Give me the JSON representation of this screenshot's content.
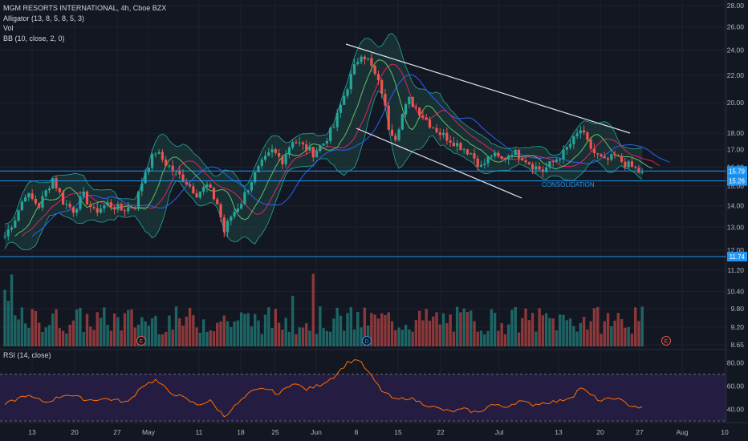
{
  "legend": {
    "title": "MGM RESORTS INTERNATIONAL, 4h, Cboe BZX",
    "alligator": "Alligator (13, 8, 5, 8, 5, 3)",
    "vol": "Vol",
    "bb": "BB (10, close, 2, 0)"
  },
  "rsi_label": "RSI (14, close)",
  "annotation": "CONSOLIDATION",
  "event_markers": [
    "E",
    "D",
    "E"
  ],
  "colors": {
    "background": "#131722",
    "up": "#26a69a",
    "down": "#ef5350",
    "hline": "#2196f3",
    "bb_band": "#26a69a",
    "bb_fill": "#1f4f4a",
    "jaw": "#2962ff",
    "teeth": "#e91e63",
    "lips": "#66bb6a",
    "rsi_line": "#ff6d00",
    "rsi_fill": "#2a1f4a",
    "channel": "#e0e3eb"
  },
  "chart_data": {
    "type": "candlestick",
    "price_axis": {
      "ticks": [
        "28.00",
        "26.00",
        "24.00",
        "22.00",
        "20.00",
        "18.00",
        "17.00",
        "16.00",
        "15.00",
        "14.00",
        "13.00",
        "12.00",
        "11.20",
        "10.40",
        "9.80",
        "9.20",
        "8.65"
      ],
      "scale": "log"
    },
    "x_ticks": [
      "13",
      "20",
      "27",
      "May",
      "11",
      "18",
      "25",
      "Jun",
      "8",
      "15",
      "22",
      "Jul",
      "13",
      "20",
      "27",
      "Aug",
      "10"
    ],
    "price_tags": [
      "15.79",
      "15.26",
      "11.74"
    ],
    "horizontal_levels": [
      15.79,
      15.26,
      11.74
    ],
    "close_path": [
      [
        0,
        12.6
      ],
      [
        3,
        13.4
      ],
      [
        6,
        14.6
      ],
      [
        10,
        14.0
      ],
      [
        14,
        15.4
      ],
      [
        17,
        14.2
      ],
      [
        20,
        13.8
      ],
      [
        23,
        14.5
      ],
      [
        26,
        13.7
      ],
      [
        30,
        14.1
      ],
      [
        34,
        13.8
      ],
      [
        38,
        14.0
      ],
      [
        41,
        15.8
      ],
      [
        44,
        16.9
      ],
      [
        47,
        16.2
      ],
      [
        50,
        15.7
      ],
      [
        53,
        15.2
      ],
      [
        56,
        14.6
      ],
      [
        59,
        15.0
      ],
      [
        62,
        14.1
      ],
      [
        64,
        12.8
      ],
      [
        66,
        13.5
      ],
      [
        69,
        14.2
      ],
      [
        72,
        15.3
      ],
      [
        75,
        16.2
      ],
      [
        78,
        16.9
      ],
      [
        81,
        16.4
      ],
      [
        84,
        17.6
      ],
      [
        87,
        17.2
      ],
      [
        90,
        16.8
      ],
      [
        93,
        17.4
      ],
      [
        96,
        18.4
      ],
      [
        99,
        20.5
      ],
      [
        102,
        22.6
      ],
      [
        104,
        23.8
      ],
      [
        106,
        23.2
      ],
      [
        108,
        22.0
      ],
      [
        110,
        20.8
      ],
      [
        112,
        18.4
      ],
      [
        114,
        17.8
      ],
      [
        116,
        19.2
      ],
      [
        118,
        20.2
      ],
      [
        121,
        19.4
      ],
      [
        124,
        18.6
      ],
      [
        127,
        18.0
      ],
      [
        130,
        17.6
      ],
      [
        133,
        17.2
      ],
      [
        136,
        16.8
      ],
      [
        139,
        16.0
      ],
      [
        142,
        16.7
      ],
      [
        145,
        16.4
      ],
      [
        148,
        16.9
      ],
      [
        151,
        16.6
      ],
      [
        154,
        16.1
      ],
      [
        157,
        15.8
      ],
      [
        160,
        16.3
      ],
      [
        163,
        16.8
      ],
      [
        166,
        17.6
      ],
      [
        168,
        18.2
      ],
      [
        170,
        17.4
      ],
      [
        172,
        16.8
      ],
      [
        175,
        16.3
      ],
      [
        178,
        16.6
      ],
      [
        181,
        16.2
      ],
      [
        184,
        15.9
      ],
      [
        186,
        15.6
      ]
    ],
    "rsi": {
      "ylim": [
        30,
        85
      ],
      "ticks": [
        "80.00",
        "60.00",
        "40.00"
      ],
      "upper": 70,
      "lower": 30,
      "path": [
        [
          0,
          44
        ],
        [
          6,
          52
        ],
        [
          12,
          46
        ],
        [
          18,
          53
        ],
        [
          24,
          48
        ],
        [
          30,
          49
        ],
        [
          36,
          46
        ],
        [
          40,
          60
        ],
        [
          44,
          65
        ],
        [
          48,
          55
        ],
        [
          52,
          50
        ],
        [
          56,
          44
        ],
        [
          60,
          47
        ],
        [
          64,
          34
        ],
        [
          68,
          45
        ],
        [
          72,
          55
        ],
        [
          76,
          58
        ],
        [
          80,
          53
        ],
        [
          84,
          63
        ],
        [
          88,
          57
        ],
        [
          92,
          61
        ],
        [
          96,
          68
        ],
        [
          100,
          80
        ],
        [
          103,
          83
        ],
        [
          106,
          72
        ],
        [
          110,
          56
        ],
        [
          114,
          48
        ],
        [
          118,
          50
        ],
        [
          122,
          45
        ],
        [
          126,
          41
        ],
        [
          130,
          38
        ],
        [
          134,
          40
        ],
        [
          138,
          37
        ],
        [
          142,
          44
        ],
        [
          146,
          42
        ],
        [
          150,
          47
        ],
        [
          154,
          44
        ],
        [
          158,
          46
        ],
        [
          162,
          47
        ],
        [
          166,
          52
        ],
        [
          168,
          59
        ],
        [
          170,
          54
        ],
        [
          174,
          47
        ],
        [
          178,
          50
        ],
        [
          182,
          44
        ],
        [
          186,
          41
        ]
      ]
    }
  }
}
